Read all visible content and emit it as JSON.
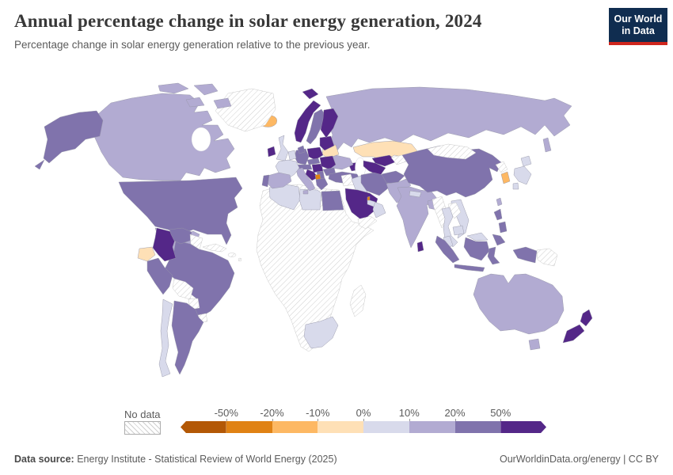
{
  "header": {
    "title": "Annual percentage change in solar energy generation, 2024",
    "subtitle": "Percentage change in solar energy generation relative to the previous year.",
    "logo": {
      "line1": "Our World",
      "line2": "in Data"
    }
  },
  "colors": {
    "logo_background": "#102d50",
    "logo_underline": "#cf261d",
    "title_text": "#383838",
    "muted_text": "#5b5b5b"
  },
  "legend": {
    "no_data_label": "No data"
  },
  "chart_data": {
    "type": "choropleth",
    "title": "Annual percentage change in solar energy generation, 2024",
    "unit": "%",
    "tick_labels": [
      "-50%",
      "-20%",
      "-10%",
      "0%",
      "10%",
      "20%",
      "50%"
    ],
    "bin_order": [
      "b1",
      "b2",
      "b3",
      "b4",
      "b5",
      "b6",
      "b7",
      "b8"
    ],
    "bins": {
      "b1": {
        "label": "less than -50%",
        "color": "#b35806"
      },
      "b2": {
        "label": "-50% to -20%",
        "color": "#e08214"
      },
      "b3": {
        "label": "-20% to -10%",
        "color": "#fdb863"
      },
      "b4": {
        "label": "-10% to 0%",
        "color": "#fee0b6"
      },
      "b5": {
        "label": "0% to 10%",
        "color": "#d8daeb"
      },
      "b6": {
        "label": "10% to 20%",
        "color": "#b2abd2"
      },
      "b7": {
        "label": "20% to 50%",
        "color": "#8073ac"
      },
      "b8": {
        "label": "more than 50%",
        "color": "#542788"
      },
      "no-data": {
        "label": "No data",
        "color": "hatch"
      }
    },
    "regions": {
      "greenland": {
        "name": "Greenland",
        "bin": "no-data"
      },
      "iceland": {
        "name": "Iceland",
        "bin": "b3"
      },
      "canada": {
        "name": "Canada",
        "bin": "b6"
      },
      "united-states": {
        "name": "United States",
        "bin": "b7"
      },
      "mexico": {
        "name": "Mexico",
        "bin": "b6"
      },
      "central-america": {
        "name": "Central America",
        "bin": "no-data"
      },
      "caribbean": {
        "name": "Caribbean",
        "bin": "no-data"
      },
      "colombia": {
        "name": "Colombia",
        "bin": "b8"
      },
      "venezuela": {
        "name": "Venezuela",
        "bin": "b7"
      },
      "guyana-suriname": {
        "name": "Guyana and Suriname",
        "bin": "no-data"
      },
      "ecuador": {
        "name": "Ecuador",
        "bin": "b4"
      },
      "peru": {
        "name": "Peru",
        "bin": "b7"
      },
      "brazil": {
        "name": "Brazil",
        "bin": "b7"
      },
      "bolivia": {
        "name": "Bolivia",
        "bin": "no-data"
      },
      "paraguay": {
        "name": "Paraguay",
        "bin": "no-data"
      },
      "uruguay": {
        "name": "Uruguay",
        "bin": "no-data"
      },
      "chile": {
        "name": "Chile",
        "bin": "b5"
      },
      "argentina": {
        "name": "Argentina",
        "bin": "b7"
      },
      "ireland": {
        "name": "Ireland",
        "bin": "b8"
      },
      "united-kingdom": {
        "name": "United Kingdom",
        "bin": "b5"
      },
      "norway": {
        "name": "Norway",
        "bin": "b8"
      },
      "sweden": {
        "name": "Sweden",
        "bin": "b7"
      },
      "finland": {
        "name": "Finland",
        "bin": "b8"
      },
      "denmark": {
        "name": "Denmark",
        "bin": "b7"
      },
      "baltic-states": {
        "name": "Estonia, Latvia and Lithuania",
        "bin": "b8"
      },
      "poland": {
        "name": "Poland",
        "bin": "b8"
      },
      "germany": {
        "name": "Germany",
        "bin": "b7"
      },
      "netherlands-belgium": {
        "name": "Netherlands and Belgium",
        "bin": "b5"
      },
      "france": {
        "name": "France",
        "bin": "b5"
      },
      "spain": {
        "name": "Spain",
        "bin": "b6"
      },
      "portugal": {
        "name": "Portugal",
        "bin": "b7"
      },
      "italy": {
        "name": "Italy",
        "bin": "b6"
      },
      "czechia-slovakia": {
        "name": "Czechia and Slovakia",
        "bin": "b7"
      },
      "switzerland-austria": {
        "name": "Switzerland and Austria",
        "bin": "b7"
      },
      "hungary": {
        "name": "Hungary",
        "bin": "b8"
      },
      "croatia": {
        "name": "Croatia",
        "bin": "b8"
      },
      "serbia": {
        "name": "Serbia",
        "bin": "b7"
      },
      "romania": {
        "name": "Romania",
        "bin": "b8"
      },
      "bulgaria": {
        "name": "Bulgaria",
        "bin": "b7"
      },
      "greece": {
        "name": "Greece",
        "bin": "b7"
      },
      "north-macedonia": {
        "name": "North Macedonia",
        "bin": "b2"
      },
      "belarus": {
        "name": "Belarus",
        "bin": "b4"
      },
      "ukraine": {
        "name": "Ukraine",
        "bin": "b6"
      },
      "russia": {
        "name": "Russia",
        "bin": "b6"
      },
      "kazakhstan": {
        "name": "Kazakhstan",
        "bin": "b4"
      },
      "uzbekistan": {
        "name": "Uzbekistan",
        "bin": "b8"
      },
      "kyrgyzstan-tajikistan": {
        "name": "Kyrgyzstan and Tajikistan",
        "bin": "no-data"
      },
      "turkmenistan": {
        "name": "Turkmenistan",
        "bin": "b8"
      },
      "azerbaijan": {
        "name": "Azerbaijan",
        "bin": "b8"
      },
      "turkey": {
        "name": "Turkey",
        "bin": "b7"
      },
      "syria-jordan": {
        "name": "Syria and Jordan",
        "bin": "no-data"
      },
      "iraq": {
        "name": "Iraq",
        "bin": "b5"
      },
      "iran": {
        "name": "Iran",
        "bin": "b7"
      },
      "saudi-arabia": {
        "name": "Saudi Arabia",
        "bin": "b8"
      },
      "yemen": {
        "name": "Yemen",
        "bin": "no-data"
      },
      "oman": {
        "name": "Oman",
        "bin": "b5"
      },
      "uae": {
        "name": "United Arab Emirates",
        "bin": "b5"
      },
      "qatar": {
        "name": "Qatar",
        "bin": "b2"
      },
      "afghanistan": {
        "name": "Afghanistan",
        "bin": "b7"
      },
      "pakistan": {
        "name": "Pakistan",
        "bin": "b6"
      },
      "india": {
        "name": "India",
        "bin": "b6"
      },
      "nepal": {
        "name": "Nepal",
        "bin": "b5"
      },
      "bangladesh": {
        "name": "Bangladesh",
        "bin": "b6"
      },
      "sri-lanka": {
        "name": "Sri Lanka",
        "bin": "b8"
      },
      "china": {
        "name": "China",
        "bin": "b7"
      },
      "mongolia": {
        "name": "Mongolia",
        "bin": "no-data"
      },
      "north-korea": {
        "name": "North Korea",
        "bin": "no-data"
      },
      "south-korea": {
        "name": "South Korea",
        "bin": "b3"
      },
      "japan": {
        "name": "Japan",
        "bin": "b5"
      },
      "taiwan": {
        "name": "Taiwan",
        "bin": "b6"
      },
      "myanmar": {
        "name": "Myanmar",
        "bin": "no-data"
      },
      "laos": {
        "name": "Laos",
        "bin": "no-data"
      },
      "thailand": {
        "name": "Thailand",
        "bin": "b5"
      },
      "vietnam": {
        "name": "Vietnam",
        "bin": "b5"
      },
      "cambodia": {
        "name": "Cambodia",
        "bin": "b5"
      },
      "malaysia": {
        "name": "Malaysia",
        "bin": "b5"
      },
      "indonesia": {
        "name": "Indonesia",
        "bin": "b7"
      },
      "philippines": {
        "name": "Philippines",
        "bin": "b7"
      },
      "papua-new-guinea": {
        "name": "Papua New Guinea",
        "bin": "no-data"
      },
      "africa-no-data": {
        "name": "Africa (most countries)",
        "bin": "no-data"
      },
      "algeria": {
        "name": "Algeria",
        "bin": "b5"
      },
      "libya": {
        "name": "Libya",
        "bin": "b5"
      },
      "egypt": {
        "name": "Egypt",
        "bin": "b7"
      },
      "south-africa": {
        "name": "South Africa",
        "bin": "b5"
      },
      "madagascar": {
        "name": "Madagascar",
        "bin": "no-data"
      },
      "australia": {
        "name": "Australia",
        "bin": "b6"
      },
      "new-zealand": {
        "name": "New Zealand",
        "bin": "b8"
      }
    }
  },
  "footer": {
    "source_label": "Data source:",
    "source_value": "Energy Institute - Statistical Review of World Energy (2025)",
    "credit": "OurWorldinData.org/energy | CC BY"
  }
}
